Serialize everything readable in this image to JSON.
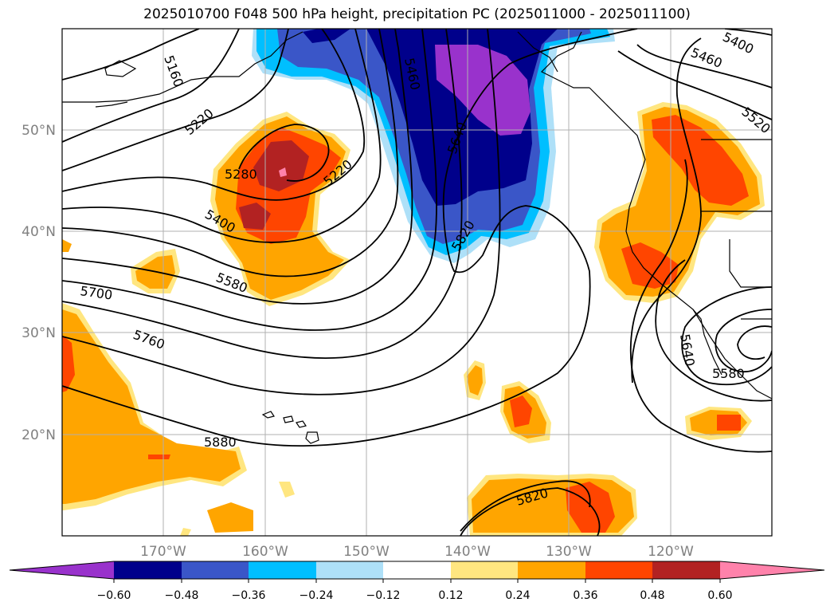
{
  "title": "2025010700 F048 500 hPa height, precipitation PC (2025011000 - 2025011100)",
  "map": {
    "lat_labels": [
      "50°N",
      "40°N",
      "30°N",
      "20°N"
    ],
    "lon_labels": [
      "170°W",
      "160°W",
      "150°W",
      "140°W",
      "130°W",
      "120°W"
    ],
    "contour_labels": [
      "5160",
      "5220",
      "5280",
      "5220",
      "5400",
      "5580",
      "5700",
      "5760",
      "5880",
      "5460",
      "5640",
      "5820",
      "5460",
      "5400",
      "5520",
      "5640",
      "5580",
      "5820"
    ],
    "colors": {
      "neg_extreme": "#9932cc",
      "neg_060": "#00008b",
      "neg_048": "#3a56c8",
      "neg_036": "#00bfff",
      "neg_024": "#aee0f8",
      "pos_012": "#ffe680",
      "pos_024": "#ffa500",
      "pos_036": "#ff4500",
      "pos_048": "#b22222",
      "pos_extreme": "#ff82ab"
    }
  },
  "colorbar": {
    "ticks": [
      "−0.60",
      "−0.48",
      "−0.36",
      "−0.24",
      "−0.12",
      "0.12",
      "0.24",
      "0.36",
      "0.48",
      "0.60"
    ],
    "colors": [
      "#9932cc",
      "#00008b",
      "#3a56c8",
      "#00bfff",
      "#aee0f8",
      "#ffffff",
      "#ffe680",
      "#ffa500",
      "#ff4500",
      "#b22222",
      "#ff82ab"
    ]
  }
}
